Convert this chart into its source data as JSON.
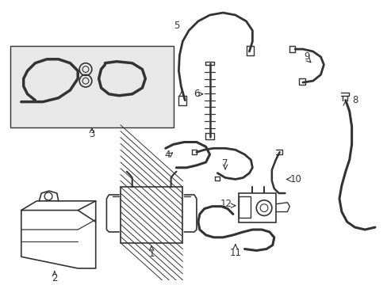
{
  "bg_color": "#ffffff",
  "line_color": "#333333",
  "label_color": "#000000",
  "figsize": [
    4.89,
    3.6
  ],
  "dpi": 100,
  "box3_bg": "#e8e8e8",
  "hatch_color": "#555555"
}
